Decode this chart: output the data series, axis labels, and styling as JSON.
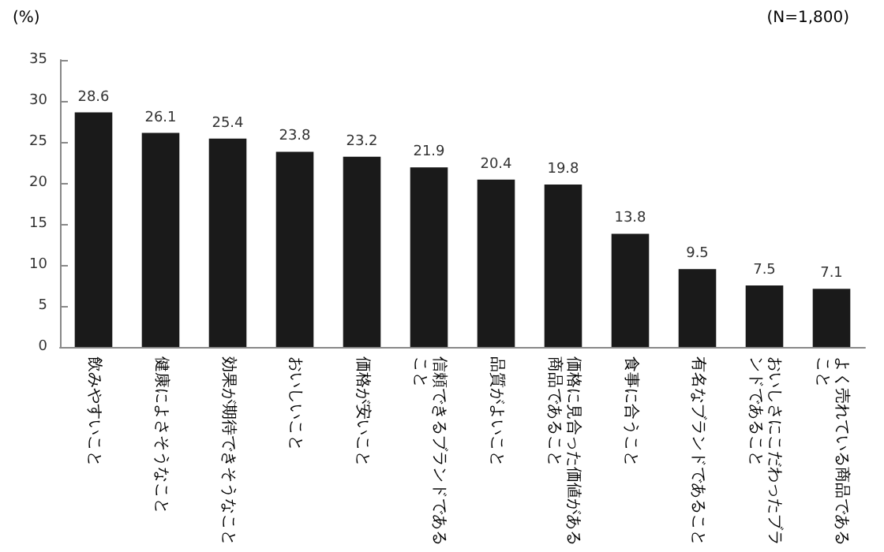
{
  "chart_data": {
    "type": "bar",
    "ylabel": "(%)",
    "annotations": [
      "(N=1,800)"
    ],
    "categories": [
      "飲みやすいこと",
      "健康によさそうなこと",
      "効果が期待できそうなこと",
      "おいしいこと",
      "価格が安いこと",
      "信頼できるブランドであること",
      "品質がよいこと",
      "価格に見合った価値がある商品であること",
      "食事に合うこと",
      "有名なブランドであること",
      "おいしさにこだわったブランドであること",
      "よく売れている商品であること"
    ],
    "values": [
      28.6,
      26.1,
      25.4,
      23.8,
      23.2,
      21.9,
      20.4,
      19.8,
      13.8,
      9.5,
      7.5,
      7.1
    ],
    "color": "#1a1a1a",
    "ylim": [
      0,
      35
    ],
    "yticks": [
      0,
      5,
      10,
      15,
      20,
      25,
      30,
      35
    ],
    "grid": false,
    "data_labels": true
  }
}
